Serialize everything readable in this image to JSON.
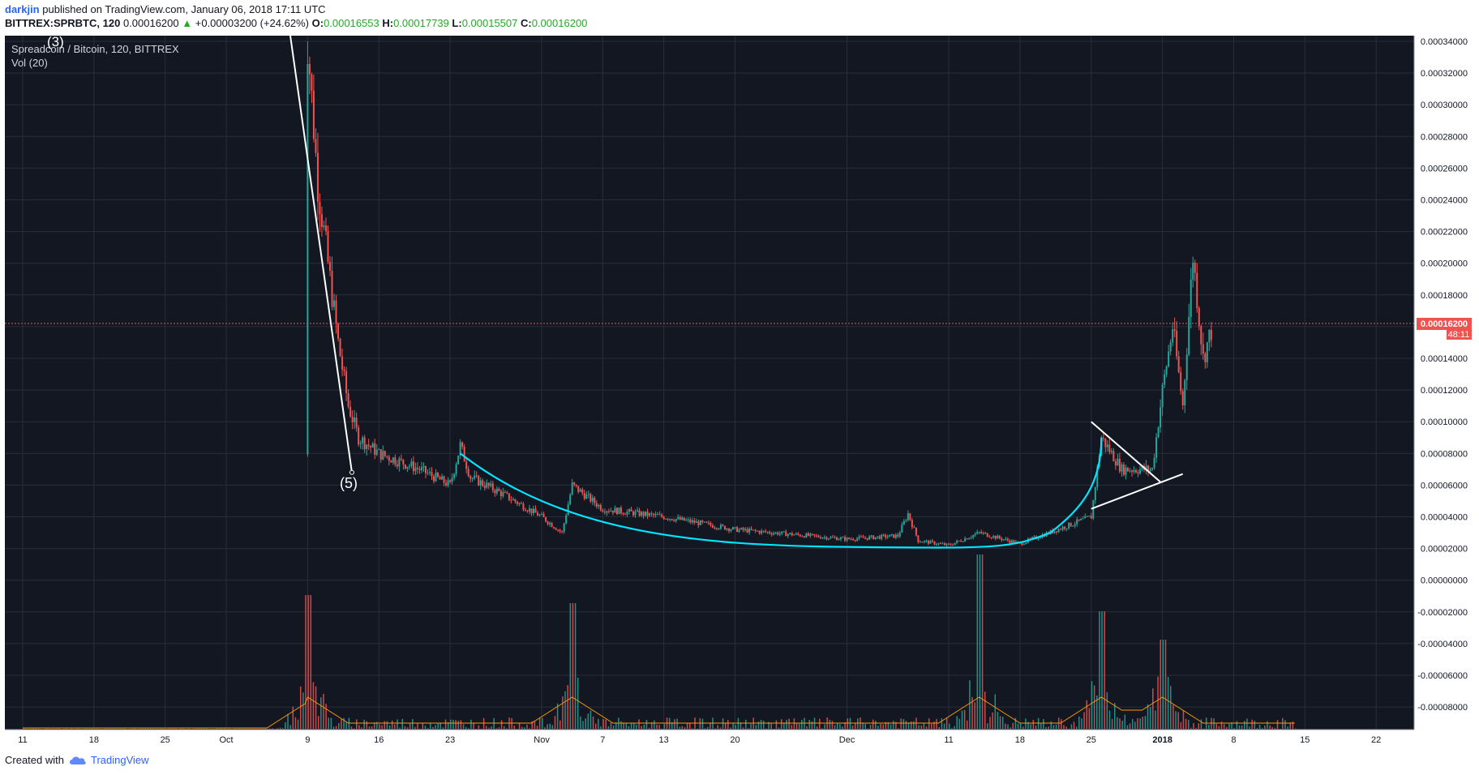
{
  "header": {
    "author": "darkjin",
    "published_text": "published on TradingView.com, January 06, 2018 17:11 UTC",
    "symbol_line": "BITTREX:SPRBTC, 120",
    "last_price": "0.00016200",
    "change_arrow": "▲",
    "change": "+0.00003200 (+24.62%)",
    "ohlc": {
      "o_label": "O:",
      "o": "0.00016553",
      "h_label": "H:",
      "h": "0.00017739",
      "l_label": "L:",
      "l": "0.00015507",
      "c_label": "C:",
      "c": "0.00016200"
    }
  },
  "chart_data": {
    "type": "candlestick",
    "legend_title": "Spreadcoin / Bitcoin, 120, BITTREX",
    "volume_label": "Vol (20)",
    "y_ticks": [
      "0.00034000",
      "0.00032000",
      "0.00030000",
      "0.00028000",
      "0.00026000",
      "0.00024000",
      "0.00022000",
      "0.00020000",
      "0.00018000",
      "0.00016000",
      "0.00014000",
      "0.00012000",
      "0.00010000",
      "0.00008000",
      "0.00006000",
      "0.00004000",
      "0.00002000",
      "0.00000000",
      "-0.00002000",
      "-0.00004000",
      "-0.00006000",
      "-0.00008000"
    ],
    "x_ticks": [
      "11",
      "18",
      "25",
      "Oct",
      "9",
      "16",
      "23",
      "Nov",
      "7",
      "13",
      "20",
      "Dec",
      "11",
      "18",
      "25",
      "2018",
      "8",
      "15",
      "22"
    ],
    "ylim": [
      -0.0001,
      0.00034
    ],
    "current_price_label": "0.00016200",
    "countdown_label": "48:11",
    "annotations": [
      "(3)",
      "(5)"
    ],
    "price_path": [
      [
        "Oct 9",
        8e-05
      ],
      [
        "Oct 9",
        0.00034
      ],
      [
        "Oct 10",
        0.00025
      ],
      [
        "Oct 11",
        0.0002
      ],
      [
        "Oct 12",
        0.00015
      ],
      [
        "Oct 13",
        0.00011
      ],
      [
        "Oct 14",
        9e-05
      ],
      [
        "Oct 16",
        8e-05
      ],
      [
        "Oct 20",
        7e-05
      ],
      [
        "Oct 23",
        6e-05
      ],
      [
        "Oct 24",
        8.5e-05
      ],
      [
        "Oct 25",
        6.5e-05
      ],
      [
        "Oct 28",
        5.5e-05
      ],
      [
        "Nov 1",
        4e-05
      ],
      [
        "Nov 3",
        3e-05
      ],
      [
        "Nov 4",
        6e-05
      ],
      [
        "Nov 7",
        4.5e-05
      ],
      [
        "Nov 13",
        4e-05
      ],
      [
        "Nov 20",
        3.2e-05
      ],
      [
        "Dec 1",
        2.6e-05
      ],
      [
        "Dec 6",
        2.8e-05
      ],
      [
        "Dec 7",
        4.2e-05
      ],
      [
        "Dec 8",
        2.5e-05
      ],
      [
        "Dec 11",
        2.2e-05
      ],
      [
        "Dec 14",
        3e-05
      ],
      [
        "Dec 18",
        2.3e-05
      ],
      [
        "Dec 25",
        4e-05
      ],
      [
        "Dec 26",
        9e-05
      ],
      [
        "Dec 28",
        7e-05
      ],
      [
        "Dec 31",
        7e-05
      ],
      [
        "Jan 1",
        0.00012
      ],
      [
        "Jan 2",
        0.00016
      ],
      [
        "Jan 3",
        0.00011
      ],
      [
        "Jan 4",
        0.000205
      ],
      [
        "Jan 5",
        0.00014
      ],
      [
        "Jan 6",
        0.000162
      ]
    ],
    "volume_spikes": [
      "Oct 9",
      "Nov 4",
      "Dec 14",
      "Dec 26",
      "Jan 1"
    ]
  },
  "footer": {
    "created_with": "Created with",
    "brand": "TradingView"
  },
  "colors": {
    "background": "#131722",
    "grid": "#2a2e39",
    "up": "#26a69a",
    "down": "#ef5350",
    "cup_curve": "#00e5ff",
    "trend_lines": "#ffffff",
    "volume_ma": "#ff9800",
    "price_line": "#ef5350"
  }
}
